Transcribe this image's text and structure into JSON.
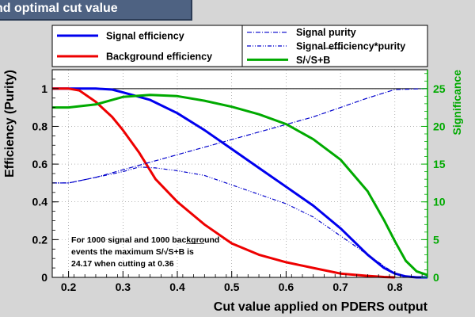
{
  "window": {
    "title": "nd optimal cut value"
  },
  "chart_data": {
    "type": "line",
    "title": "nd optimal cut value",
    "xlabel": "Cut value applied on PDERS output",
    "ylabel": "Efficiency (Purity)",
    "y2label": "Significance",
    "xlim": [
      0.17,
      0.86
    ],
    "ylim": [
      0,
      1.1
    ],
    "y2lim": [
      0,
      27.5
    ],
    "x_ticks": [
      "0.2",
      "0.3",
      "0.4",
      "0.5",
      "0.6",
      "0.7",
      "0.8"
    ],
    "y_ticks": [
      "0",
      "0.2",
      "0.4",
      "0.6",
      "0.8",
      "1"
    ],
    "y2_ticks": [
      "0",
      "5",
      "10",
      "15",
      "20",
      "25"
    ],
    "grid": true,
    "reference_line_y": 1.0,
    "series": [
      {
        "name": "Signal efficiency",
        "axis": "left",
        "color": "#0000ee",
        "style": "solid",
        "x": [
          0.17,
          0.2,
          0.25,
          0.28,
          0.3,
          0.35,
          0.4,
          0.45,
          0.5,
          0.55,
          0.6,
          0.65,
          0.7,
          0.75,
          0.78,
          0.8,
          0.82,
          0.84,
          0.86
        ],
        "y": [
          1.0,
          1.0,
          1.0,
          0.995,
          0.98,
          0.94,
          0.87,
          0.78,
          0.68,
          0.58,
          0.48,
          0.38,
          0.26,
          0.12,
          0.05,
          0.02,
          0.005,
          0.0,
          0.0
        ]
      },
      {
        "name": "Background efficiency",
        "axis": "left",
        "color": "#ee0000",
        "style": "solid",
        "x": [
          0.17,
          0.2,
          0.22,
          0.25,
          0.28,
          0.3,
          0.33,
          0.36,
          0.4,
          0.45,
          0.5,
          0.55,
          0.6,
          0.65,
          0.7,
          0.75,
          0.78,
          0.8
        ],
        "y": [
          1.0,
          1.0,
          0.99,
          0.93,
          0.85,
          0.78,
          0.66,
          0.52,
          0.4,
          0.28,
          0.18,
          0.12,
          0.08,
          0.05,
          0.02,
          0.008,
          0.002,
          0.0
        ]
      },
      {
        "name": "Signal purity",
        "axis": "left",
        "color": "#0000cc",
        "style": "dashdot",
        "x": [
          0.17,
          0.2,
          0.25,
          0.3,
          0.35,
          0.4,
          0.45,
          0.5,
          0.55,
          0.6,
          0.65,
          0.7,
          0.75,
          0.8,
          0.86
        ],
        "y": [
          0.5,
          0.5,
          0.53,
          0.57,
          0.61,
          0.65,
          0.69,
          0.73,
          0.77,
          0.81,
          0.85,
          0.9,
          0.95,
          0.995,
          1.0
        ]
      },
      {
        "name": "Signal efficiency*purity",
        "axis": "left",
        "color": "#0000cc",
        "style": "dashdotdot",
        "x": [
          0.17,
          0.2,
          0.25,
          0.3,
          0.33,
          0.36,
          0.4,
          0.45,
          0.5,
          0.55,
          0.6,
          0.65,
          0.7,
          0.75,
          0.78,
          0.8,
          0.83,
          0.86
        ],
        "y": [
          0.5,
          0.5,
          0.53,
          0.56,
          0.585,
          0.58,
          0.565,
          0.54,
          0.49,
          0.44,
          0.39,
          0.32,
          0.22,
          0.12,
          0.06,
          0.02,
          0.0,
          0.0
        ]
      },
      {
        "name": "S/√S+B",
        "axis": "right",
        "color": "#00aa00",
        "style": "solid",
        "x": [
          0.17,
          0.2,
          0.25,
          0.3,
          0.35,
          0.4,
          0.45,
          0.5,
          0.55,
          0.6,
          0.65,
          0.7,
          0.75,
          0.78,
          0.8,
          0.82,
          0.84,
          0.86
        ],
        "y": [
          22.5,
          22.5,
          22.9,
          23.9,
          24.17,
          24.0,
          23.4,
          22.6,
          21.6,
          20.3,
          18.3,
          15.6,
          11.4,
          7.6,
          4.8,
          2.2,
          0.8,
          0.3
        ]
      }
    ],
    "annotation": {
      "lines": [
        "For 1000 signal and 1000 background",
        "events the maximum S/√S+B  is",
        "24.17 when cutting at 0.36"
      ]
    }
  }
}
